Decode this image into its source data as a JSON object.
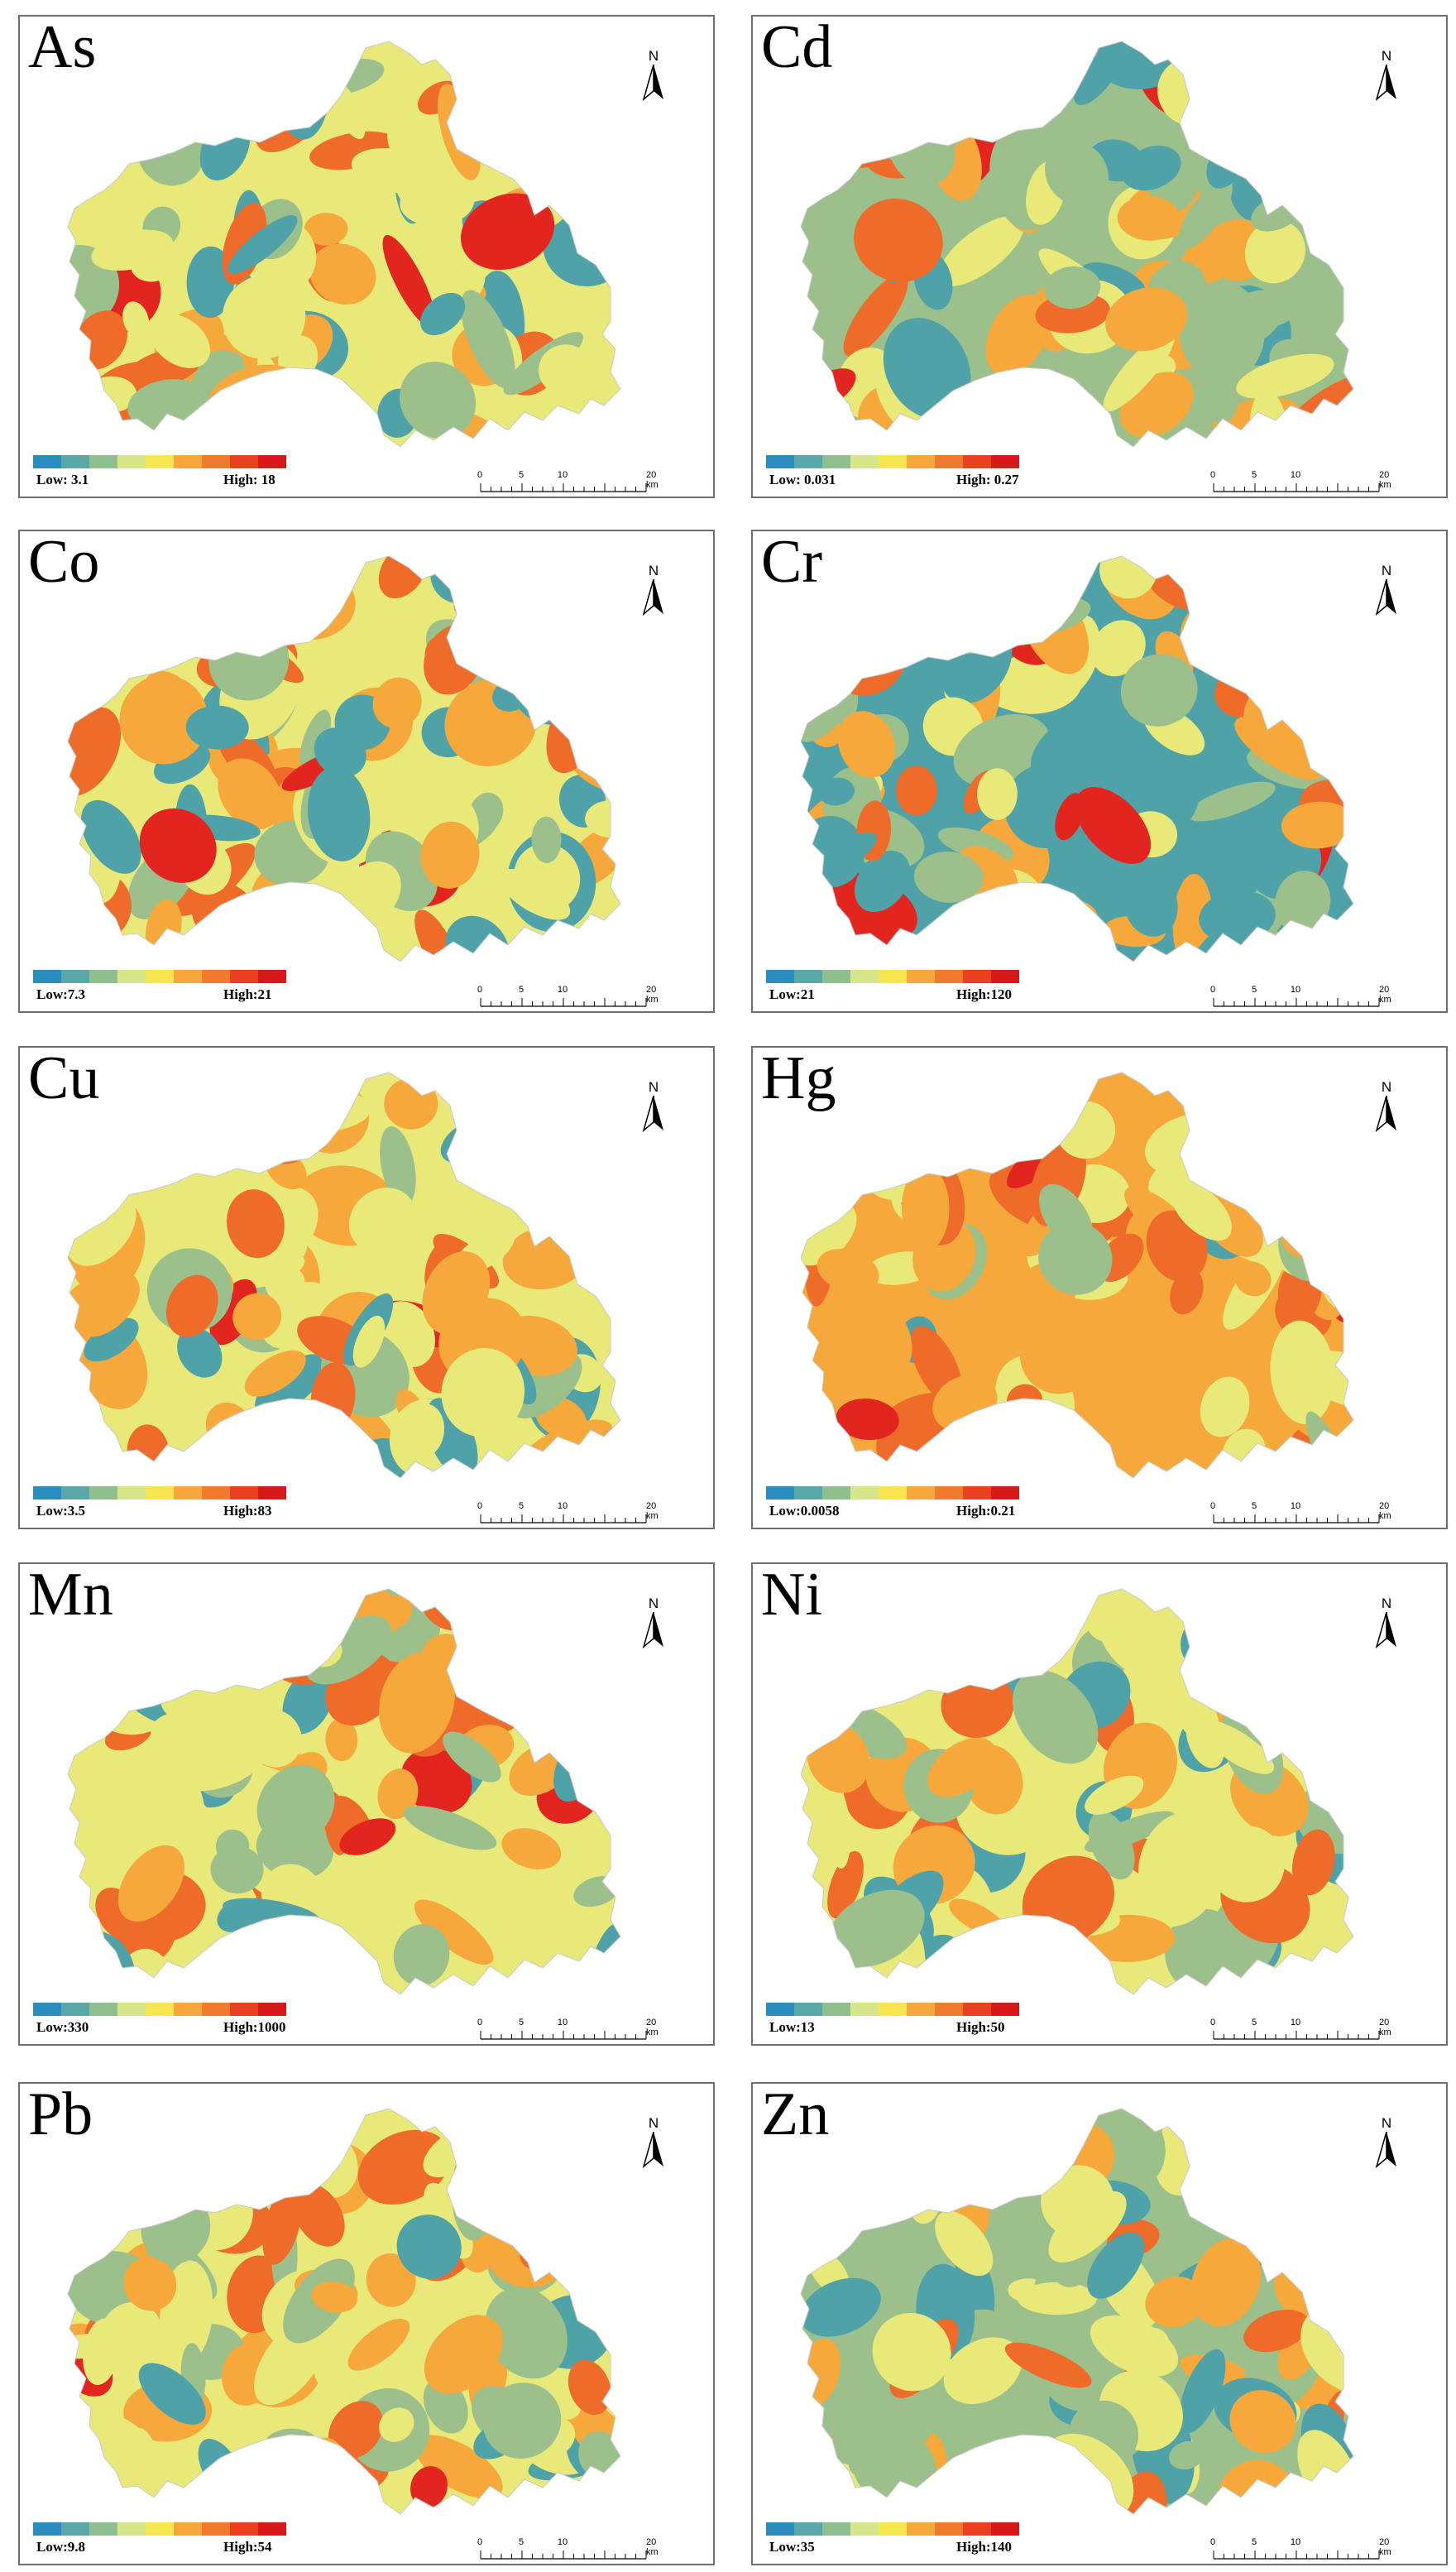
{
  "panels": [
    {
      "element": "As",
      "low": "Low:  3.1",
      "high": "High:  18"
    },
    {
      "element": "Cd",
      "low": "Low:  0.031",
      "high": "High:  0.27"
    },
    {
      "element": "Co",
      "low": "Low:7.3",
      "high": "High:21"
    },
    {
      "element": "Cr",
      "low": "Low:21",
      "high": "High:120"
    },
    {
      "element": "Cu",
      "low": "Low:3.5",
      "high": "High:83"
    },
    {
      "element": "Hg",
      "low": "Low:0.0058",
      "high": "High:0.21"
    },
    {
      "element": "Mn",
      "low": "Low:330",
      "high": "High:1000"
    },
    {
      "element": "Ni",
      "low": "Low:13",
      "high": "High:50"
    },
    {
      "element": "Pb",
      "low": "Low:9.8",
      "high": "High:54"
    },
    {
      "element": "Zn",
      "low": "Low:35",
      "high": "High:140"
    }
  ],
  "north_label": "N",
  "scale_ticks": [
    "0",
    "5",
    "10",
    "20 km"
  ],
  "legend_colors": [
    "#2b8cbe",
    "#5aa9a8",
    "#8fbf8f",
    "#d6e68a",
    "#f7e64f",
    "#f6a83a",
    "#f07a2c",
    "#e9401f",
    "#d7191c"
  ],
  "map_colors": {
    "low": "#4fa3a8",
    "midlow": "#9cc08c",
    "mid": "#e9e97a",
    "midhigh": "#f6a83a",
    "high": "#ee6b2a",
    "peak": "#e2261f"
  }
}
